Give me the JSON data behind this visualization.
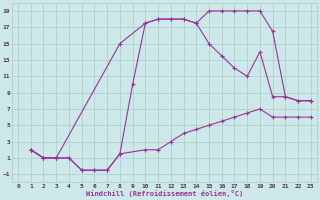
{
  "xlabel": "Windchill (Refroidissement éolien,°C)",
  "bg_color": "#cce8e8",
  "grid_color": "#aacccc",
  "line_color": "#993399",
  "marker": "+",
  "markersize": 3,
  "linewidth": 0.8,
  "xlim": [
    -0.5,
    23.5
  ],
  "ylim": [
    -2,
    20
  ],
  "xticks": [
    0,
    1,
    2,
    3,
    4,
    5,
    6,
    7,
    8,
    9,
    10,
    11,
    12,
    13,
    14,
    15,
    16,
    17,
    18,
    19,
    20,
    21,
    22,
    23
  ],
  "yticks": [
    -1,
    1,
    3,
    5,
    7,
    9,
    11,
    13,
    15,
    17,
    19
  ],
  "line1_x": [
    1,
    2,
    3,
    4,
    5,
    6,
    7,
    8,
    10,
    11,
    12,
    13,
    14,
    15,
    16,
    17,
    18,
    19,
    20,
    21,
    22,
    23
  ],
  "line1_y": [
    2,
    1,
    1,
    1,
    -0.5,
    -0.5,
    -0.5,
    1.5,
    2,
    2,
    3,
    4,
    4.5,
    5,
    5.5,
    6,
    6.5,
    7,
    6,
    6,
    6,
    6
  ],
  "line2_x": [
    1,
    2,
    3,
    4,
    5,
    6,
    7,
    8,
    9,
    10,
    11,
    12,
    13,
    14,
    15,
    16,
    17,
    18,
    19,
    20,
    21,
    22,
    23
  ],
  "line2_y": [
    2,
    1,
    1,
    1,
    -0.5,
    -0.5,
    -0.5,
    1.5,
    10,
    17.5,
    18,
    18,
    18,
    17.5,
    19,
    19,
    19,
    19,
    19,
    16.5,
    8.5,
    8,
    8
  ],
  "line3_x": [
    1,
    2,
    3,
    8,
    10,
    11,
    12,
    13,
    14,
    15,
    16,
    17,
    18,
    19,
    20,
    21,
    22,
    23
  ],
  "line3_y": [
    2,
    1,
    1,
    15,
    17.5,
    18,
    18,
    18,
    17.5,
    15,
    13.5,
    12,
    11,
    14,
    8.5,
    8.5,
    8,
    8
  ]
}
